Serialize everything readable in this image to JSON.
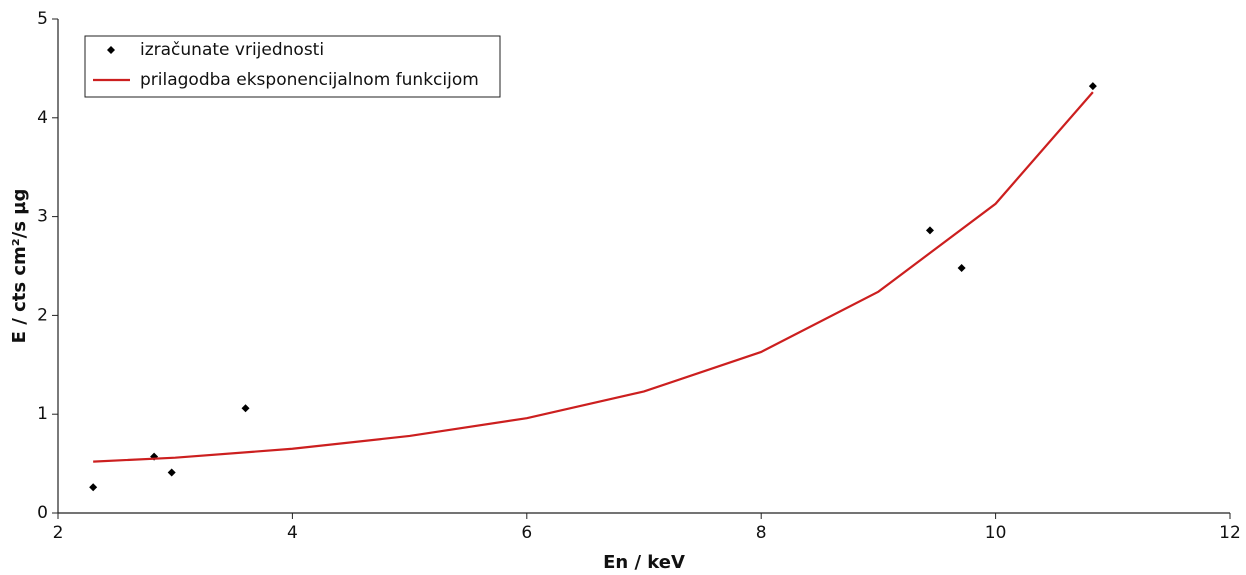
{
  "chart_data": {
    "type": "scatter",
    "x_label": "En / keV",
    "y_label": "E / cts cm²/s µg",
    "xlim": [
      2,
      12
    ],
    "xticks": [
      2,
      4,
      6,
      8,
      10,
      12
    ],
    "ylim": [
      0,
      5
    ],
    "yticks": [
      0,
      1,
      2,
      3,
      4,
      5
    ],
    "legend": "top-left",
    "series": [
      {
        "name": "izračunate vrijednosti",
        "color": "#000000",
        "mode": "markers",
        "x": [
          2.3,
          2.82,
          2.97,
          3.6,
          9.44,
          9.71,
          10.83
        ],
        "values": [
          0.26,
          0.57,
          0.41,
          1.06,
          2.86,
          2.48,
          4.32
        ]
      },
      {
        "name": "prilagodba eksponencijalnom funkcijom",
        "color": "#cc1f1f",
        "mode": "line",
        "x": [
          2.3,
          3,
          4,
          5,
          6,
          7,
          8,
          9,
          10,
          10.83
        ],
        "values": [
          0.52,
          0.56,
          0.65,
          0.78,
          0.96,
          1.23,
          1.63,
          2.24,
          3.13,
          4.26
        ]
      }
    ]
  }
}
